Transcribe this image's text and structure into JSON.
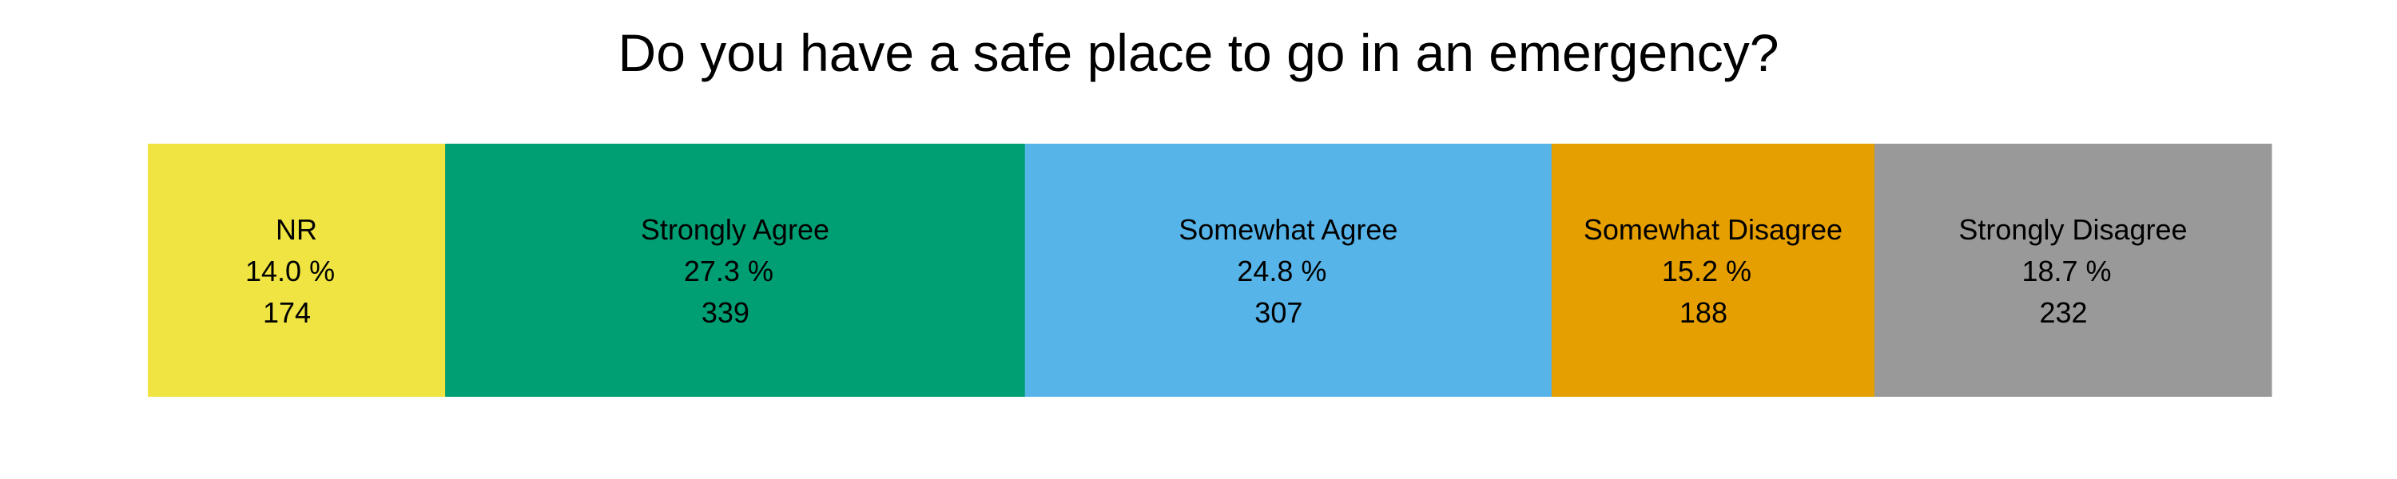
{
  "chart_data": {
    "type": "bar",
    "orientation": "horizontal-stacked",
    "title": "Do you have a safe place to go in an emergency?",
    "xlabel": "",
    "ylabel": "",
    "grid": false,
    "legend": "none",
    "segments": [
      {
        "label": "NR",
        "percent_label": "14.0 %",
        "percent": 14.0,
        "count": "174",
        "color": "#F0E442"
      },
      {
        "label": "Strongly Agree",
        "percent_label": "27.3 %",
        "percent": 27.3,
        "count": "339",
        "color": "#009E73"
      },
      {
        "label": "Somewhat Agree",
        "percent_label": "24.8 %",
        "percent": 24.8,
        "count": "307",
        "color": "#56B4E9"
      },
      {
        "label": "Somewhat Disagree",
        "percent_label": "15.2 %",
        "percent": 15.2,
        "count": "188",
        "color": "#E69F00"
      },
      {
        "label": "Strongly Disagree",
        "percent_label": "18.7 %",
        "percent": 18.7,
        "count": "232",
        "color": "#999999"
      }
    ]
  }
}
